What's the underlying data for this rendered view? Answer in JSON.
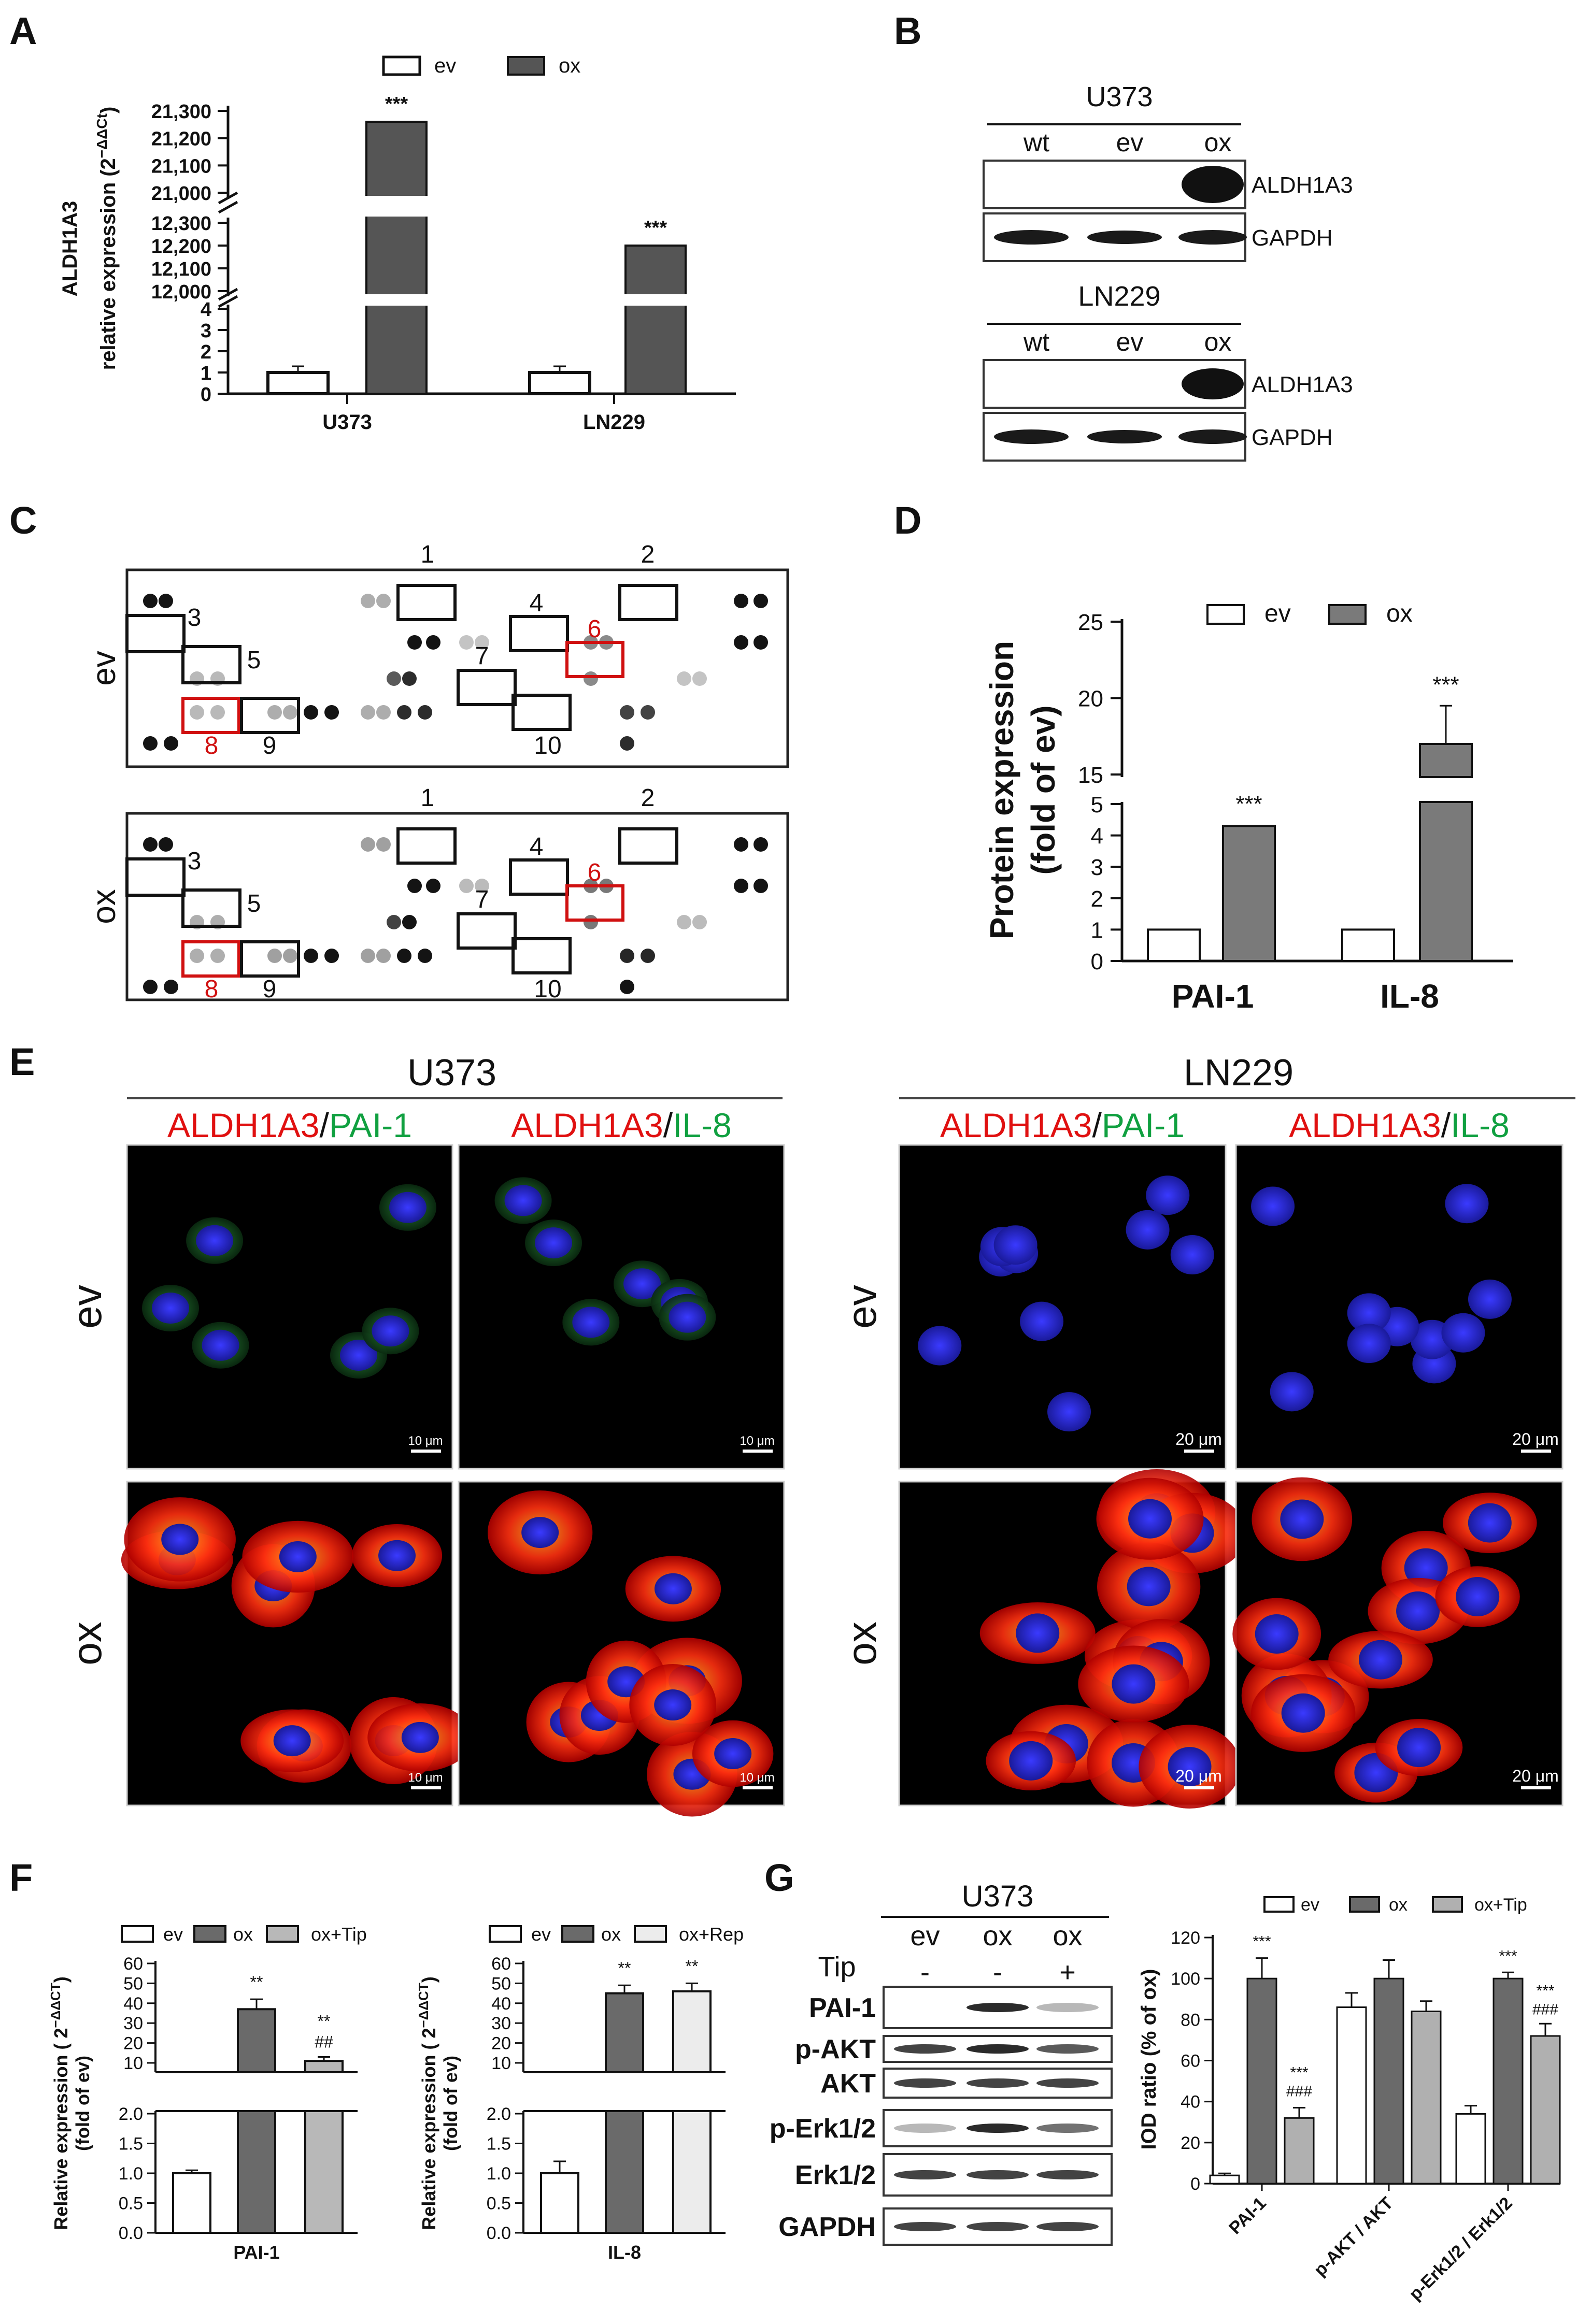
{
  "panel_letters": [
    "A",
    "B",
    "C",
    "D",
    "E",
    "F",
    "G"
  ],
  "panelA": {
    "legend": [
      "ev",
      "ox"
    ],
    "ylabel_gene": "ALDH1A3",
    "ylabel_main": "relative expression (2",
    "ylabel_sup": "−ΔΔCt",
    "ylabel_close": ")",
    "ticks_low": [
      "0",
      "1",
      "2",
      "3",
      "4"
    ],
    "ticks_mid": [
      "12,000",
      "12,100",
      "12,200",
      "12,300"
    ],
    "ticks_high": [
      "21,000",
      "21,100",
      "21,200",
      "21,300"
    ],
    "categories": [
      "U373",
      "LN229"
    ],
    "sig": [
      "***",
      "***"
    ],
    "colors": {
      "ev": "#ffffff",
      "ox": "#555555"
    }
  },
  "panelB": {
    "blocks": [
      {
        "cell": "U373",
        "lanes": [
          "wt",
          "ev",
          "ox"
        ],
        "rows": [
          "ALDH1A3",
          "GAPDH"
        ]
      },
      {
        "cell": "LN229",
        "lanes": [
          "wt",
          "ev",
          "ox"
        ],
        "rows": [
          "ALDH1A3",
          "GAPDH"
        ]
      }
    ]
  },
  "panelC": {
    "rows": [
      "ev",
      "ox"
    ],
    "numbers": [
      "1",
      "2",
      "3",
      "4",
      "5",
      "6",
      "7",
      "8",
      "9",
      "10"
    ]
  },
  "panelD": {
    "legend": [
      "ev",
      "ox"
    ],
    "ylabel": [
      "Protein expression",
      "(fold of ev)"
    ],
    "ticks_low": [
      "0",
      "1",
      "2",
      "3",
      "4",
      "5"
    ],
    "ticks_high": [
      "15",
      "20",
      "25"
    ],
    "categories": [
      "PAI-1",
      "IL-8"
    ],
    "sig": [
      "***",
      "***"
    ]
  },
  "panelE": {
    "cells": [
      "U373",
      "LN229"
    ],
    "stain_red": "ALDH1A3",
    "slash": "/",
    "stain_green": [
      "PAI-1",
      "IL-8"
    ],
    "rows": [
      "ev",
      "ox"
    ],
    "scalebars": [
      "10 μm",
      "20 μm"
    ]
  },
  "panelF": {
    "charts": [
      {
        "legend": [
          "ev",
          "ox",
          "ox+Tip"
        ],
        "category": "PAI-1",
        "sig_ox": "**",
        "sig_tip": "**",
        "sig_tip2": "##"
      },
      {
        "legend": [
          "ev",
          "ox",
          "ox+Rep"
        ],
        "category": "IL-8",
        "sig_ox": "**",
        "sig_tip": "**",
        "sig_tip2": ""
      }
    ],
    "ylabel": [
      "Relative expression ( 2",
      "−ΔΔCT",
      ")",
      "(fold of ev)"
    ],
    "ticks_high": [
      "10",
      "20",
      "30",
      "40",
      "50",
      "60"
    ],
    "ticks_low": [
      "0.0",
      "0.5",
      "1.0",
      "1.5",
      "2.0"
    ]
  },
  "panelG": {
    "cell": "U373",
    "lanes": [
      "ev",
      "ox",
      "ox"
    ],
    "tip_label": "Tip",
    "tip_signs": [
      "-",
      "-",
      "+"
    ],
    "rows": [
      "PAI-1",
      "p-AKT",
      "AKT",
      "p-Erk1/2",
      "Erk1/2",
      "GAPDH"
    ],
    "legend": [
      "ev",
      "ox",
      "ox+Tip"
    ],
    "ylabel": "IOD ratio (% of ox)",
    "ticks": [
      "0",
      "20",
      "40",
      "60",
      "80",
      "100",
      "120"
    ],
    "categories": [
      "PAI-1",
      "p-AKT / AKT",
      "p-Erk1/2 / Erk1/2"
    ],
    "sig": {
      "pai_ox": "***",
      "pai_tip": "***",
      "pai_tip2": "###",
      "erk_ox": "***",
      "erk_tip": "***",
      "erk_tip2": "###"
    }
  },
  "chart_data": [
    {
      "type": "bar",
      "panel": "A",
      "categories": [
        "U373",
        "LN229"
      ],
      "series": [
        {
          "name": "ev",
          "values": [
            1.0,
            1.0
          ]
        },
        {
          "name": "ox",
          "values": [
            21260,
            12200
          ]
        }
      ],
      "ylabel": "ALDH1A3 relative expression (2−ΔΔCt)"
    },
    {
      "type": "bar",
      "panel": "D",
      "categories": [
        "PAI-1",
        "IL-8"
      ],
      "series": [
        {
          "name": "ev",
          "values": [
            1.0,
            1.0
          ]
        },
        {
          "name": "ox",
          "values": [
            4.3,
            17.0
          ]
        }
      ],
      "error": {
        "ox": [
          0.05,
          2.5
        ]
      },
      "ylabel": "Protein expression (fold of ev)"
    },
    {
      "type": "bar",
      "panel": "F-left",
      "categories": [
        "PAI-1"
      ],
      "series": [
        {
          "name": "ev",
          "values": [
            1.0
          ]
        },
        {
          "name": "ox",
          "values": [
            37
          ]
        },
        {
          "name": "ox+Tip",
          "values": [
            11
          ]
        }
      ],
      "error": {
        "ev": [
          0.05
        ],
        "ox": [
          5
        ],
        "ox+Tip": [
          2
        ]
      }
    },
    {
      "type": "bar",
      "panel": "F-right",
      "categories": [
        "IL-8"
      ],
      "series": [
        {
          "name": "ev",
          "values": [
            1.0
          ]
        },
        {
          "name": "ox",
          "values": [
            45
          ]
        },
        {
          "name": "ox+Rep",
          "values": [
            46
          ]
        }
      ],
      "error": {
        "ev": [
          0.2
        ],
        "ox": [
          4
        ],
        "ox+Rep": [
          4
        ]
      }
    },
    {
      "type": "bar",
      "panel": "G",
      "categories": [
        "PAI-1",
        "p-AKT / AKT",
        "p-Erk1/2 / Erk1/2"
      ],
      "series": [
        {
          "name": "ev",
          "values": [
            4,
            86,
            34
          ]
        },
        {
          "name": "ox",
          "values": [
            100,
            100,
            100
          ]
        },
        {
          "name": "ox+Tip",
          "values": [
            32,
            84,
            72
          ]
        }
      ],
      "error": {
        "ev": [
          1,
          7,
          4
        ],
        "ox": [
          10,
          9,
          3
        ],
        "ox+Tip": [
          5,
          5,
          6
        ]
      },
      "ylim": [
        0,
        120
      ],
      "ylabel": "IOD ratio (% of ox)"
    }
  ]
}
